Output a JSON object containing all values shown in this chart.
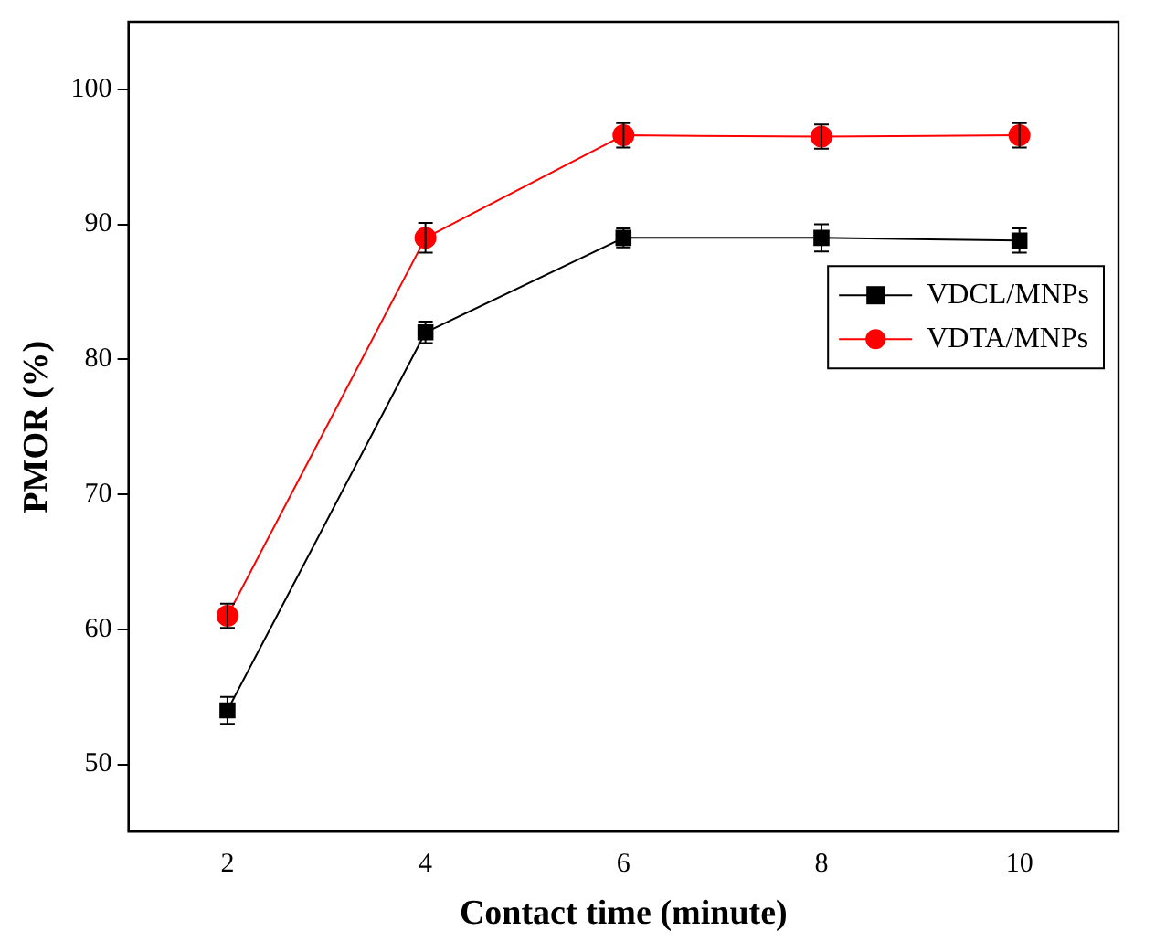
{
  "chart_data": {
    "type": "line",
    "xlabel": "Contact time (minute)",
    "ylabel": "PMOR (%)",
    "x": [
      2,
      4,
      6,
      8,
      10
    ],
    "series": [
      {
        "name": "VDCL/MNPs",
        "color": "#000000",
        "marker": "square",
        "values": [
          54,
          82,
          89,
          89,
          88.8
        ],
        "errors": [
          1,
          0.8,
          0.7,
          1,
          0.9
        ]
      },
      {
        "name": "VDTA/MNPs",
        "color": "#ff0000",
        "marker": "circle",
        "values": [
          61,
          89,
          96.6,
          96.5,
          96.6
        ],
        "errors": [
          0.9,
          1.1,
          0.9,
          0.9,
          0.9
        ]
      }
    ],
    "xlim": [
      1,
      11
    ],
    "xticks": [
      2,
      4,
      6,
      8,
      10
    ],
    "ylim": [
      45,
      105
    ],
    "yticks": [
      50,
      60,
      70,
      80,
      90,
      100
    ],
    "grid": false,
    "legend": "right",
    "line_style": "solid"
  }
}
